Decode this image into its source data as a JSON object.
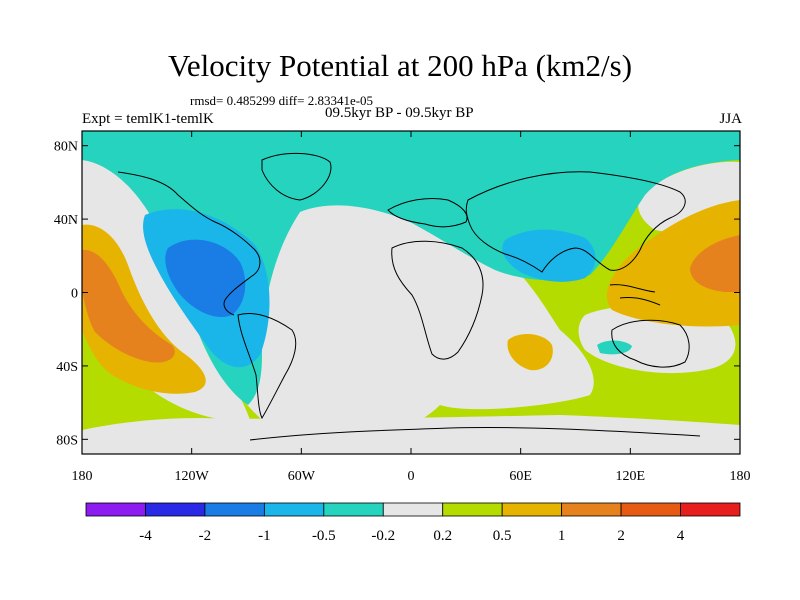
{
  "title": "Velocity Potential at 200 hPa (km2/s)",
  "stats": "rmsd= 0.485299 diff= 2.83341e-05",
  "experiment": "Expt = temlK1-temlK",
  "period": "09.5kyr BP - 09.5kyr BP",
  "season": "JJA",
  "axes": {
    "lat_ticks": [
      {
        "label": "80N",
        "lat": 80
      },
      {
        "label": "40N",
        "lat": 40
      },
      {
        "label": "0",
        "lat": 0
      },
      {
        "label": "40S",
        "lat": -40
      },
      {
        "label": "80S",
        "lat": -80
      }
    ],
    "lon_ticks": [
      {
        "label": "180",
        "lon": -180
      },
      {
        "label": "120W",
        "lon": -120
      },
      {
        "label": "60W",
        "lon": -60
      },
      {
        "label": "0",
        "lon": 0
      },
      {
        "label": "60E",
        "lon": 60
      },
      {
        "label": "120E",
        "lon": 120
      },
      {
        "label": "180",
        "lon": 180
      }
    ]
  },
  "colorbar": {
    "colors": [
      "#8c1cf0",
      "#2a2ae6",
      "#1a7de6",
      "#1ab6ea",
      "#26d3bf",
      "#e6e6e6",
      "#b4dc00",
      "#e6b400",
      "#e6821e",
      "#e65a14",
      "#e61e1e"
    ],
    "labels": [
      "-4",
      "-2",
      "-1",
      "-0.5",
      "-0.2",
      "0.2",
      "0.5",
      "1",
      "2",
      "4"
    ]
  },
  "field_colors": {
    "teal": "#26d3bf",
    "gray": "#e6e6e6",
    "cyan": "#1ab6ea",
    "blue": "#1a7de6",
    "lime": "#b4dc00",
    "yellow": "#e6b400",
    "orange": "#e6821e"
  }
}
